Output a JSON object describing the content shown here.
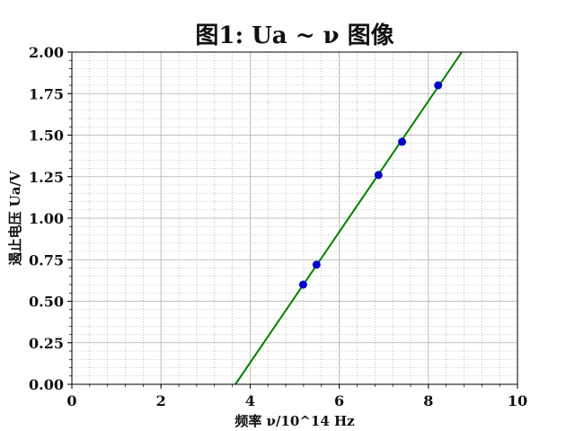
{
  "chart_data": {
    "type": "scatter",
    "title": "图1:  Ua ~ ν 图像",
    "xlabel": "频率 ν/10^14 Hz",
    "ylabel": "遏止电压 Ua/V",
    "xlim": [
      0,
      10
    ],
    "ylim": [
      0,
      2.0
    ],
    "x_ticks": [
      "0",
      "2",
      "4",
      "6",
      "8",
      "10"
    ],
    "y_ticks": [
      "0.00",
      "0.25",
      "0.50",
      "0.75",
      "1.00",
      "1.25",
      "1.50",
      "1.75",
      "2.00"
    ],
    "grid": true,
    "series": [
      {
        "type": "scatter",
        "x": [
          5.19,
          5.49,
          6.88,
          7.41,
          8.22
        ],
        "y": [
          0.6,
          0.72,
          1.26,
          1.46,
          1.8
        ],
        "color": "#0000cc"
      },
      {
        "type": "line",
        "x": [
          3.67,
          8.75
        ],
        "y": [
          0.0,
          2.0
        ],
        "color": "#008000"
      }
    ]
  }
}
